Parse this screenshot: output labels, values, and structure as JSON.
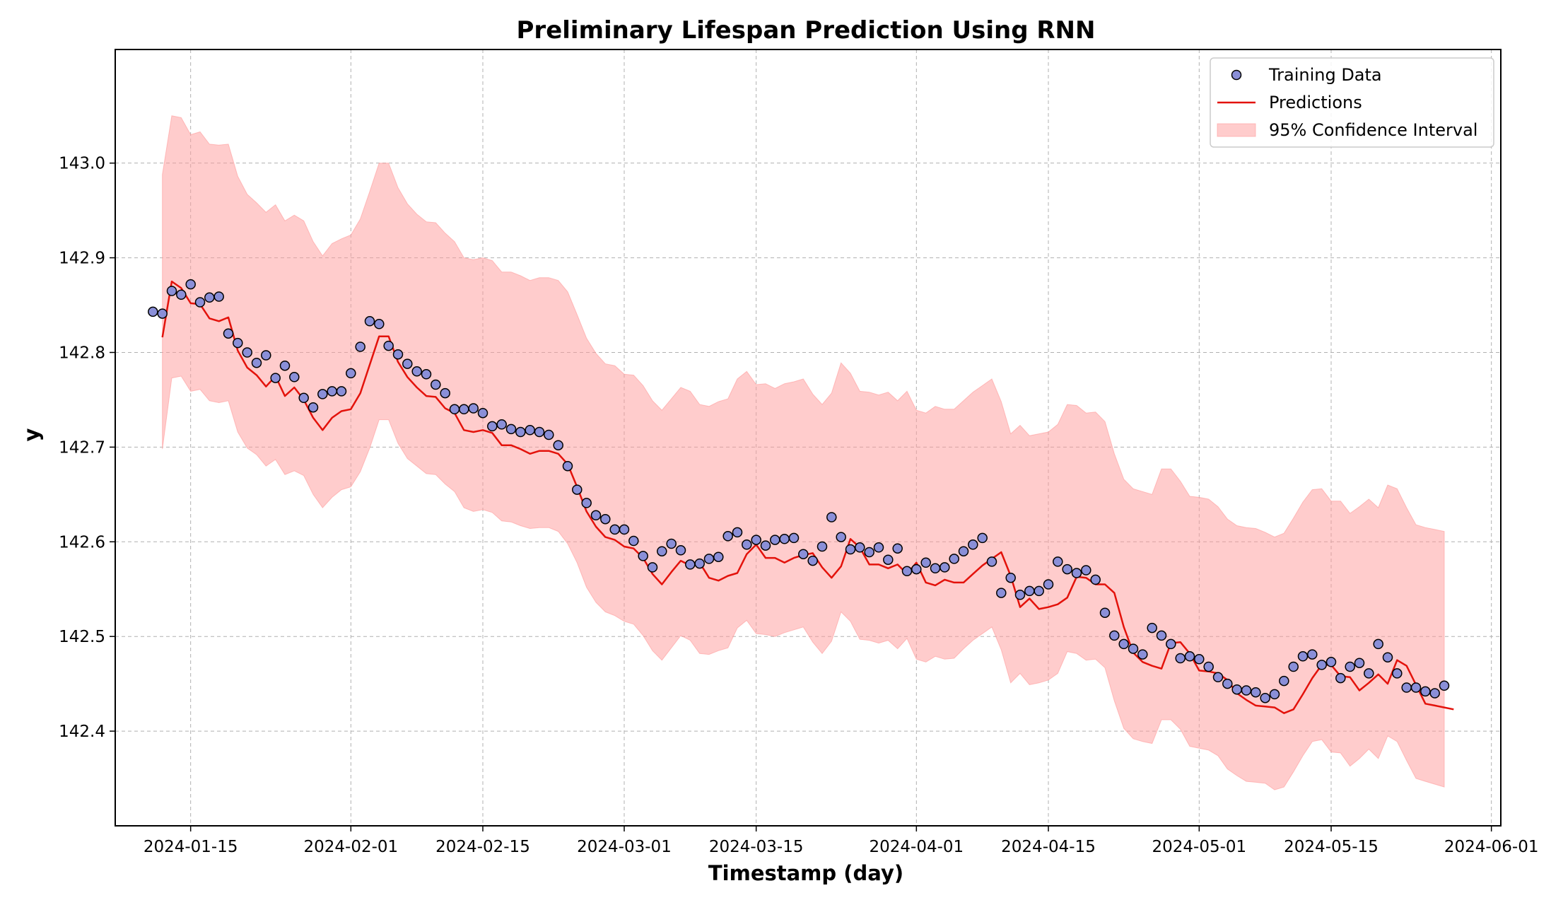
{
  "chart_data": {
    "type": "line",
    "title": "Preliminary Lifespan Prediction Using RNN",
    "xlabel": "Timestamp (day)",
    "ylabel": "y",
    "xlim": [
      "2024-01-07",
      "2024-06-02"
    ],
    "ylim": [
      142.3,
      143.12
    ],
    "x_ticks": [
      "2024-01-15",
      "2024-02-01",
      "2024-02-15",
      "2024-03-01",
      "2024-03-15",
      "2024-04-01",
      "2024-04-15",
      "2024-05-01",
      "2024-05-15",
      "2024-06-01"
    ],
    "y_ticks": [
      "142.4",
      "142.5",
      "142.6",
      "142.7",
      "142.8",
      "142.9",
      "143.0"
    ],
    "grid": true,
    "legend": {
      "position": "top-right",
      "entries": [
        "Training Data",
        "Predictions",
        "95% Confidence Interval"
      ]
    },
    "colors": {
      "training_fill": "#8a8fd8",
      "training_edge": "#000000",
      "prediction_line": "#e3120b",
      "interval_fill": "#ff9999"
    },
    "series": [
      {
        "name": "Training Data",
        "kind": "scatter",
        "start_date": "2024-01-11",
        "step_days": 1,
        "values": [
          142.843,
          142.841,
          142.865,
          142.861,
          142.872,
          142.853,
          142.858,
          142.859,
          142.82,
          142.81,
          142.8,
          142.789,
          142.797,
          142.773,
          142.786,
          142.774,
          142.752,
          142.742,
          142.756,
          142.759,
          142.759,
          142.778,
          142.806,
          142.833,
          142.83,
          142.807,
          142.798,
          142.788,
          142.78,
          142.777,
          142.766,
          142.757,
          142.74,
          142.74,
          142.741,
          142.736,
          142.722,
          142.724,
          142.719,
          142.716,
          142.718,
          142.716,
          142.713,
          142.702,
          142.68,
          142.655,
          142.641,
          142.628,
          142.624,
          142.613,
          142.613,
          142.601,
          142.585,
          142.573,
          142.59,
          142.598,
          142.591,
          142.576,
          142.577,
          142.582,
          142.584,
          142.606,
          142.61,
          142.597,
          142.602,
          142.596,
          142.602,
          142.603,
          142.604,
          142.587,
          142.58,
          142.595,
          142.626,
          142.605,
          142.592,
          142.594,
          142.589,
          142.594,
          142.581,
          142.593,
          142.569,
          142.571,
          142.578,
          142.572,
          142.573,
          142.582,
          142.59,
          142.597,
          142.604,
          142.579,
          142.546,
          142.562,
          142.544,
          142.548,
          142.548,
          142.555,
          142.579,
          142.571,
          142.567,
          142.57,
          142.56,
          142.525,
          142.501,
          142.492,
          142.487,
          142.481,
          142.509,
          142.501,
          142.492,
          142.477,
          142.479,
          142.476,
          142.468,
          142.457,
          142.45,
          142.444,
          142.443,
          142.441,
          142.435,
          142.439,
          142.453,
          142.468,
          142.479,
          142.481,
          142.47,
          142.473,
          142.456,
          142.468,
          142.472,
          142.461,
          142.492,
          142.478,
          142.461,
          142.446,
          142.446,
          142.442,
          142.44,
          142.448
        ]
      },
      {
        "name": "Predictions",
        "kind": "line",
        "start_date": "2024-01-12",
        "step_days": 1,
        "values": [
          142.816,
          142.875,
          142.868,
          142.852,
          142.851,
          142.836,
          142.833,
          142.837,
          142.802,
          142.784,
          142.776,
          142.764,
          142.775,
          142.754,
          142.763,
          142.75,
          142.731,
          142.718,
          142.731,
          142.738,
          142.74,
          142.757,
          142.787,
          142.817,
          142.817,
          142.79,
          142.774,
          142.763,
          142.754,
          142.753,
          142.741,
          142.736,
          142.718,
          142.716,
          142.718,
          142.715,
          142.702,
          142.702,
          142.698,
          142.693,
          142.696,
          142.696,
          142.693,
          142.682,
          142.658,
          142.632,
          142.616,
          142.605,
          142.602,
          142.595,
          142.593,
          142.583,
          142.566,
          142.555,
          142.568,
          142.58,
          142.575,
          142.578,
          142.562,
          142.559,
          142.564,
          142.567,
          142.587,
          142.597,
          142.583,
          142.583,
          142.578,
          142.583,
          142.586,
          142.588,
          142.573,
          142.562,
          142.574,
          142.603,
          142.594,
          142.576,
          142.576,
          142.572,
          142.576,
          142.566,
          142.578,
          142.557,
          142.554,
          142.56,
          142.557,
          142.557,
          142.566,
          142.575,
          142.582,
          142.589,
          142.564,
          142.531,
          142.54,
          142.529,
          142.531,
          142.534,
          142.541,
          142.563,
          142.562,
          142.555,
          142.555,
          142.546,
          142.51,
          142.483,
          142.473,
          142.469,
          142.466,
          142.493,
          142.494,
          142.482,
          142.464,
          142.463,
          142.461,
          142.454,
          142.44,
          142.433,
          142.427,
          142.426,
          142.425,
          142.419,
          142.423,
          142.439,
          142.456,
          142.47,
          142.47,
          142.458,
          142.457,
          142.443,
          142.451,
          142.46,
          142.45,
          142.475,
          142.469,
          142.449,
          142.429,
          142.427,
          142.425,
          142.423
        ]
      },
      {
        "name": "95% Confidence Interval",
        "kind": "band",
        "start_date": "2024-01-12",
        "step_days": 1,
        "lower": [
          142.698,
          142.773,
          142.775,
          142.759,
          142.761,
          142.749,
          142.747,
          142.749,
          142.716,
          142.699,
          142.692,
          142.68,
          142.687,
          142.671,
          142.675,
          142.67,
          142.65,
          142.636,
          142.647,
          142.655,
          142.658,
          142.674,
          142.699,
          142.729,
          142.729,
          142.704,
          142.688,
          142.68,
          142.672,
          142.671,
          142.661,
          142.653,
          142.636,
          142.632,
          142.634,
          142.631,
          142.622,
          142.621,
          142.617,
          142.614,
          142.615,
          142.615,
          142.611,
          142.598,
          142.578,
          142.552,
          142.536,
          142.526,
          142.522,
          142.516,
          142.513,
          142.501,
          142.485,
          142.475,
          142.488,
          142.501,
          142.496,
          142.482,
          142.481,
          142.485,
          142.488,
          142.509,
          142.517,
          142.503,
          142.502,
          142.5,
          142.504,
          142.507,
          142.51,
          142.494,
          142.482,
          142.495,
          142.526,
          142.516,
          142.497,
          142.496,
          142.493,
          142.496,
          142.487,
          142.498,
          142.476,
          142.473,
          142.479,
          142.476,
          142.477,
          142.487,
          142.496,
          142.503,
          142.51,
          142.486,
          142.451,
          142.461,
          142.449,
          142.451,
          142.454,
          142.461,
          142.484,
          142.482,
          142.475,
          142.476,
          142.467,
          142.432,
          142.403,
          142.392,
          142.389,
          142.387,
          142.412,
          142.412,
          142.402,
          142.384,
          142.382,
          142.38,
          142.374,
          142.36,
          142.353,
          142.347,
          142.346,
          142.345,
          142.338,
          142.341,
          142.357,
          142.374,
          142.389,
          142.391,
          142.378,
          142.377,
          142.363,
          142.371,
          142.381,
          142.371,
          142.395,
          142.389,
          142.369,
          142.35,
          142.347,
          142.344,
          142.341
        ],
        "upper": [
          142.988,
          143.05,
          143.048,
          143.03,
          143.033,
          143.02,
          143.019,
          143.02,
          142.986,
          142.967,
          142.958,
          142.948,
          142.956,
          142.939,
          142.945,
          142.939,
          142.917,
          142.902,
          142.915,
          142.92,
          142.924,
          142.941,
          142.97,
          143.0,
          143.0,
          142.974,
          142.957,
          142.946,
          142.938,
          142.937,
          142.926,
          142.917,
          142.9,
          142.898,
          142.9,
          142.897,
          142.885,
          142.885,
          142.881,
          142.876,
          142.879,
          142.879,
          142.876,
          142.864,
          142.84,
          142.815,
          142.799,
          142.788,
          142.786,
          142.777,
          142.776,
          142.765,
          142.749,
          142.739,
          142.751,
          142.763,
          142.759,
          142.745,
          142.743,
          142.748,
          142.751,
          142.772,
          142.78,
          142.766,
          142.767,
          142.762,
          142.767,
          142.769,
          142.772,
          142.756,
          142.745,
          142.757,
          142.789,
          142.778,
          142.759,
          142.758,
          142.755,
          142.758,
          142.749,
          142.759,
          142.739,
          142.736,
          142.743,
          142.74,
          142.74,
          142.749,
          142.758,
          142.765,
          142.772,
          142.748,
          142.714,
          142.723,
          142.712,
          142.714,
          142.716,
          142.724,
          142.745,
          142.744,
          142.736,
          142.737,
          142.727,
          142.693,
          142.666,
          142.656,
          142.653,
          142.65,
          142.677,
          142.677,
          142.664,
          142.648,
          142.647,
          142.645,
          142.637,
          142.624,
          142.617,
          142.615,
          142.614,
          142.61,
          142.605,
          142.609,
          142.625,
          142.642,
          142.655,
          142.656,
          142.643,
          142.643,
          142.63,
          142.637,
          142.645,
          142.636,
          142.66,
          142.656,
          142.636,
          142.618,
          142.615,
          142.613,
          142.611
        ]
      }
    ]
  }
}
